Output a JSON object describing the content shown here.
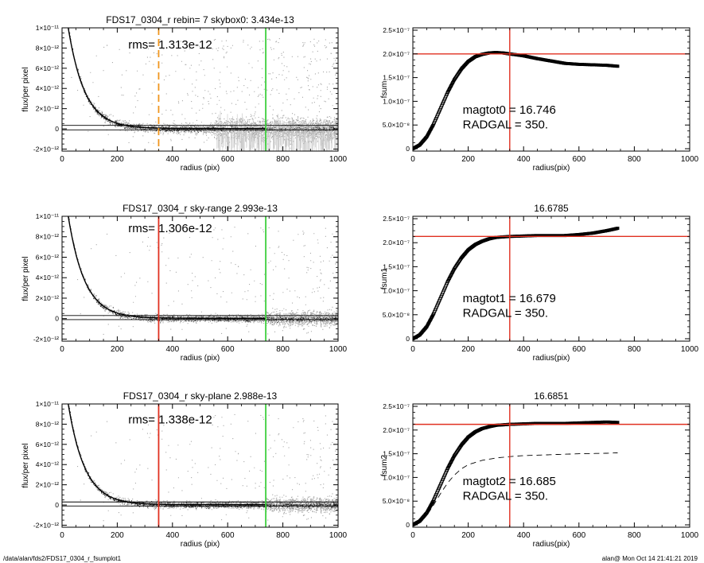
{
  "footer": {
    "path": "/data/alan/fds2/FDS17_0304_r_fsumplot1",
    "stamp": "alan@  Mon Oct 14 21:41:21 2019"
  },
  "colors": {
    "scatter_light": "#a8a8a8",
    "scatter_dark": "#2a2a2a",
    "orange_marker": "#f0961e",
    "red_marker": "#e03020",
    "green_marker": "#3ecf3e",
    "profile": "#000000"
  },
  "chart_data": [
    {
      "type": "scatter",
      "title": "FDS17_0304_r rebin= 7    skybox0:  3.434e-13",
      "annotations": [
        "rms= 1.313e-12"
      ],
      "xlabel": "radius (pix)",
      "ylabel": "flux/per pixel",
      "xlim": [
        0,
        1000
      ],
      "ylim": [
        -2.2e-12,
        1e-11
      ],
      "x_ticks": [
        0,
        200,
        400,
        600,
        800,
        1000
      ],
      "x_tick_labels": [
        "0",
        "200",
        "400",
        "600",
        "800",
        "1000"
      ],
      "y_ticks": [
        -2e-12,
        0,
        2e-12,
        4e-12,
        6e-12,
        8e-12,
        1e-11
      ],
      "y_tick_labels": [
        "-2×10⁻¹²",
        "0",
        "2×10⁻¹²",
        "4×10⁻¹²",
        "6×10⁻¹²",
        "8×10⁻¹²",
        "1×10⁻¹¹"
      ],
      "vlines": [
        {
          "x": 350,
          "color": "orange",
          "style": "dashed"
        },
        {
          "x": 738,
          "color": "green",
          "style": "solid"
        }
      ],
      "hlines": [
        3.4e-13,
        -1e-13
      ],
      "scatter_variant": "sparse"
    },
    {
      "type": "line",
      "title": "",
      "annotations": [
        "magtot0 = 16.746",
        "RADGAL =    350."
      ],
      "xlabel": "radius(pix)",
      "ylabel": "fsum",
      "xlim": [
        0,
        1000
      ],
      "ylim": [
        -5e-09,
        2.55e-07
      ],
      "x_ticks": [
        0,
        200,
        400,
        600,
        800,
        1000
      ],
      "x_tick_labels": [
        "0",
        "200",
        "400",
        "600",
        "800",
        "1000"
      ],
      "y_ticks": [
        0,
        5e-08,
        1e-07,
        1.5e-07,
        2e-07,
        2.5e-07
      ],
      "y_tick_labels": [
        "0",
        "5.0×10⁻⁸",
        "1.0×10⁻⁷",
        "1.5×10⁻⁷",
        "2.0×10⁻⁷",
        "2.5×10⁻⁷"
      ],
      "vline": 350,
      "hline": 2e-07,
      "profile": {
        "r": [
          0,
          25,
          50,
          75,
          100,
          125,
          150,
          175,
          200,
          225,
          250,
          275,
          300,
          325,
          350,
          400,
          450,
          500,
          550,
          600,
          650,
          700,
          740
        ],
        "f": [
          0,
          8e-09,
          2.5e-08,
          5.2e-08,
          8.5e-08,
          1.18e-07,
          1.46e-07,
          1.68e-07,
          1.84e-07,
          1.94e-07,
          1.99e-07,
          2.02e-07,
          2.03e-07,
          2.02e-07,
          2e-07,
          1.96e-07,
          1.9e-07,
          1.85e-07,
          1.8e-07,
          1.78e-07,
          1.77e-07,
          1.76e-07,
          1.74e-07
        ]
      },
      "second_profile": null
    },
    {
      "type": "scatter",
      "title": "FDS17_0304_r sky-range  2.993e-13",
      "annotations": [
        "rms= 1.306e-12"
      ],
      "xlabel": "radius (pix)",
      "ylabel": "flux/per pixel",
      "xlim": [
        0,
        1000
      ],
      "ylim": [
        -2.2e-12,
        1e-11
      ],
      "x_ticks": [
        0,
        200,
        400,
        600,
        800,
        1000
      ],
      "x_tick_labels": [
        "0",
        "200",
        "400",
        "600",
        "800",
        "1000"
      ],
      "y_ticks": [
        -2e-12,
        0,
        2e-12,
        4e-12,
        6e-12,
        8e-12,
        1e-11
      ],
      "y_tick_labels": [
        "-2×10⁻¹²",
        "0",
        "2×10⁻¹²",
        "4×10⁻¹²",
        "6×10⁻¹²",
        "8×10⁻¹²",
        "1×10⁻¹¹"
      ],
      "vlines": [
        {
          "x": 350,
          "color": "red",
          "style": "solid"
        },
        {
          "x": 738,
          "color": "green",
          "style": "solid"
        }
      ],
      "hlines": [
        3e-13,
        -1e-13
      ],
      "scatter_variant": "dense"
    },
    {
      "type": "line",
      "title": "16.6785",
      "annotations": [
        "magtot1 = 16.679",
        "RADGAL =    350."
      ],
      "xlabel": "radius(pix)",
      "ylabel": "fsum1",
      "xlim": [
        0,
        1000
      ],
      "ylim": [
        -5e-09,
        2.55e-07
      ],
      "x_ticks": [
        0,
        200,
        400,
        600,
        800,
        1000
      ],
      "x_tick_labels": [
        "0",
        "200",
        "400",
        "600",
        "800",
        "1000"
      ],
      "y_ticks": [
        0,
        5e-08,
        1e-07,
        1.5e-07,
        2e-07,
        2.5e-07
      ],
      "y_tick_labels": [
        "0",
        "5.0×10⁻⁸",
        "1.0×10⁻⁷",
        "1.5×10⁻⁷",
        "2.0×10⁻⁷",
        "2.5×10⁻⁷"
      ],
      "vline": 350,
      "hline": 2.13e-07,
      "profile": {
        "r": [
          0,
          25,
          50,
          75,
          100,
          125,
          150,
          175,
          200,
          225,
          250,
          275,
          300,
          325,
          350,
          400,
          450,
          500,
          550,
          600,
          650,
          700,
          740
        ],
        "f": [
          0,
          8e-09,
          2.5e-08,
          5.2e-08,
          8.5e-08,
          1.18e-07,
          1.46e-07,
          1.68e-07,
          1.85e-07,
          1.96e-07,
          2.03e-07,
          2.08e-07,
          2.11e-07,
          2.12e-07,
          2.13e-07,
          2.14e-07,
          2.15e-07,
          2.15e-07,
          2.15e-07,
          2.17e-07,
          2.2e-07,
          2.25e-07,
          2.3e-07
        ]
      },
      "second_profile": null
    },
    {
      "type": "scatter",
      "title": "FDS17_0304_r sky-plane  2.988e-13",
      "annotations": [
        "rms= 1.338e-12"
      ],
      "xlabel": "radius (pix)",
      "ylabel": "flux/per pixel",
      "xlim": [
        0,
        1000
      ],
      "ylim": [
        -2.2e-12,
        1e-11
      ],
      "x_ticks": [
        0,
        200,
        400,
        600,
        800,
        1000
      ],
      "x_tick_labels": [
        "0",
        "200",
        "400",
        "600",
        "800",
        "1000"
      ],
      "y_ticks": [
        -2e-12,
        0,
        2e-12,
        4e-12,
        6e-12,
        8e-12,
        1e-11
      ],
      "y_tick_labels": [
        "-2×10⁻¹²",
        "0",
        "2×10⁻¹²",
        "4×10⁻¹²",
        "6×10⁻¹²",
        "8×10⁻¹²",
        "1×10⁻¹¹"
      ],
      "vlines": [
        {
          "x": 350,
          "color": "red",
          "style": "solid"
        },
        {
          "x": 738,
          "color": "green",
          "style": "solid"
        }
      ],
      "hlines": [
        3e-13,
        -1e-13
      ],
      "scatter_variant": "dense"
    },
    {
      "type": "line",
      "title": "16.6851",
      "annotations": [
        "magtot2 = 16.685",
        "RADGAL =    350."
      ],
      "xlabel": "radius(pix)",
      "ylabel": "fsum2",
      "xlim": [
        0,
        1000
      ],
      "ylim": [
        -5e-09,
        2.55e-07
      ],
      "x_ticks": [
        0,
        200,
        400,
        600,
        800,
        1000
      ],
      "x_tick_labels": [
        "0",
        "200",
        "400",
        "600",
        "800",
        "1000"
      ],
      "y_ticks": [
        0,
        5e-08,
        1e-07,
        1.5e-07,
        2e-07,
        2.5e-07
      ],
      "y_tick_labels": [
        "0",
        "5.0×10⁻⁸",
        "1.0×10⁻⁷",
        "1.5×10⁻⁷",
        "2.0×10⁻⁷",
        "2.5×10⁻⁷"
      ],
      "vline": 350,
      "hline": 2.12e-07,
      "profile": {
        "r": [
          0,
          25,
          50,
          75,
          100,
          125,
          150,
          175,
          200,
          225,
          250,
          275,
          300,
          325,
          350,
          400,
          450,
          500,
          550,
          600,
          650,
          700,
          740
        ],
        "f": [
          0,
          8e-09,
          2.5e-08,
          5.2e-08,
          8.5e-08,
          1.18e-07,
          1.46e-07,
          1.68e-07,
          1.85e-07,
          1.96e-07,
          2.03e-07,
          2.07e-07,
          2.1e-07,
          2.11e-07,
          2.12e-07,
          2.13e-07,
          2.14e-07,
          2.14e-07,
          2.14e-07,
          2.15e-07,
          2.16e-07,
          2.17e-07,
          2.16e-07
        ]
      },
      "second_profile": {
        "r": [
          0,
          25,
          50,
          75,
          100,
          125,
          150,
          175,
          200,
          250,
          300,
          350,
          400,
          500,
          600,
          700,
          740
        ],
        "f": [
          0,
          6e-09,
          2e-08,
          4.2e-08,
          6.6e-08,
          8.8e-08,
          1.05e-07,
          1.18e-07,
          1.27e-07,
          1.36e-07,
          1.41e-07,
          1.44e-07,
          1.46e-07,
          1.48e-07,
          1.5e-07,
          1.51e-07,
          1.52e-07
        ]
      }
    }
  ]
}
